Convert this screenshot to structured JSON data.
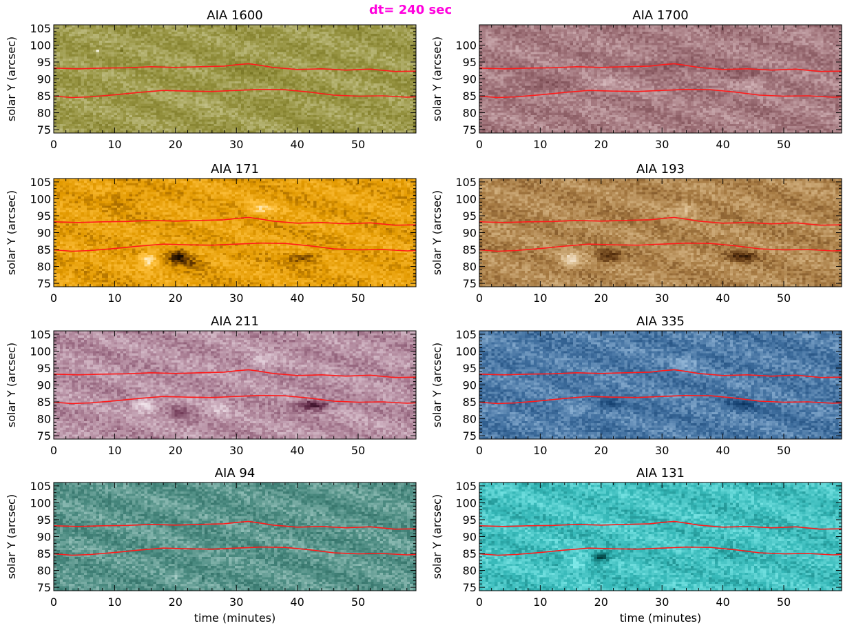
{
  "figure": {
    "annotation": "dt= 240 sec",
    "accent_color": "#ff00dd",
    "boundary_color": "#ff1a1a"
  },
  "chart_data": [
    {
      "type": "heatmap",
      "title": "AIA 1600",
      "xlabel": "",
      "ylabel": "solar Y (arcsec)",
      "xlim": [
        0,
        59.5
      ],
      "ylim": [
        74,
        106
      ],
      "xticks": [
        0,
        10,
        20,
        30,
        40,
        50
      ],
      "yticks": [
        75,
        80,
        85,
        90,
        95,
        100,
        105
      ],
      "colormap": [
        "#2f2d00",
        "#6f6c1c",
        "#94913e",
        "#c4c28a",
        "#f4f3e2"
      ],
      "features": [
        {
          "t": 32,
          "y": 92,
          "sign": -1,
          "amp": 0.25,
          "wt": 5,
          "wy": 3
        },
        {
          "t": 38,
          "y": 83,
          "sign": -1,
          "amp": 0.2,
          "wt": 4,
          "wy": 3
        },
        {
          "t": 26,
          "y": 84,
          "sign": 1,
          "amp": 0.15,
          "wt": 4,
          "wy": 3
        },
        {
          "t": 7.2,
          "y": 98.3,
          "sign": 1,
          "amp": 1.2,
          "wt": 0.3,
          "wy": 0.4
        },
        {
          "t": 11.2,
          "y": 98.6,
          "sign": -1,
          "amp": 1.2,
          "wt": 0.3,
          "wy": 0.4
        }
      ]
    },
    {
      "type": "heatmap",
      "title": "AIA 1700",
      "xlabel": "",
      "ylabel": "solar Y (arcsec)",
      "xlim": [
        0,
        59.5
      ],
      "ylim": [
        74,
        106
      ],
      "xticks": [
        0,
        10,
        20,
        30,
        40,
        50
      ],
      "yticks": [
        75,
        80,
        85,
        90,
        95,
        100
      ],
      "colormap": [
        "#2a0a0e",
        "#6b3b42",
        "#9e7178",
        "#cfb0b4",
        "#f6ecee"
      ],
      "features": [
        {
          "t": 32,
          "y": 94,
          "sign": -1,
          "amp": 0.5,
          "wt": 5,
          "wy": 2
        },
        {
          "t": 42,
          "y": 91,
          "sign": -1,
          "amp": 0.4,
          "wt": 4,
          "wy": 2
        },
        {
          "t": 10,
          "y": 88,
          "sign": -1,
          "amp": 0.35,
          "wt": 6,
          "wy": 2
        },
        {
          "t": 20,
          "y": 88,
          "sign": 1,
          "amp": 0.3,
          "wt": 5,
          "wy": 2
        },
        {
          "t": 45,
          "y": 89,
          "sign": 1,
          "amp": 0.3,
          "wt": 4,
          "wy": 2
        }
      ]
    },
    {
      "type": "heatmap",
      "title": "AIA 171",
      "xlabel": "",
      "ylabel": "solar Y (arcsec)",
      "xlim": [
        0,
        59.5
      ],
      "ylim": [
        74,
        106
      ],
      "xticks": [
        0,
        10,
        20,
        30,
        40,
        50
      ],
      "yticks": [
        75,
        80,
        85,
        90,
        95,
        100,
        105
      ],
      "colormap": [
        "#140800",
        "#6e3e00",
        "#e39a00",
        "#ffc240",
        "#fff7e0"
      ],
      "features": [
        {
          "t": 15.5,
          "y": 82,
          "sign": 1,
          "amp": 1.2,
          "wt": 1.5,
          "wy": 2
        },
        {
          "t": 20.5,
          "y": 83,
          "sign": -1,
          "amp": 1.4,
          "wt": 1.6,
          "wy": 2
        },
        {
          "t": 23,
          "y": 81,
          "sign": -1,
          "amp": 0.6,
          "wt": 2,
          "wy": 2
        },
        {
          "t": 41,
          "y": 82.5,
          "sign": -1,
          "amp": 0.8,
          "wt": 2.5,
          "wy": 1.5
        },
        {
          "t": 34,
          "y": 97,
          "sign": 1,
          "amp": 0.7,
          "wt": 2,
          "wy": 2
        },
        {
          "t": 12,
          "y": 100,
          "sign": -1,
          "amp": 0.4,
          "wt": 3,
          "wy": 2
        }
      ]
    },
    {
      "type": "heatmap",
      "title": "AIA 193",
      "xlabel": "",
      "ylabel": "solar Y (arcsec)",
      "xlim": [
        0,
        59.5
      ],
      "ylim": [
        74,
        106
      ],
      "xticks": [
        0,
        10,
        20,
        30,
        40,
        50
      ],
      "yticks": [
        75,
        80,
        85,
        90,
        95,
        100,
        105
      ],
      "colormap": [
        "#180800",
        "#5c3410",
        "#a87c44",
        "#d8b888",
        "#fff6ea"
      ],
      "features": [
        {
          "t": 15,
          "y": 82,
          "sign": 1,
          "amp": 0.9,
          "wt": 2,
          "wy": 2
        },
        {
          "t": 21,
          "y": 83,
          "sign": -1,
          "amp": 0.9,
          "wt": 2,
          "wy": 2
        },
        {
          "t": 43,
          "y": 83,
          "sign": -1,
          "amp": 1,
          "wt": 2.5,
          "wy": 1.5
        },
        {
          "t": 34,
          "y": 97,
          "sign": 1,
          "amp": 0.5,
          "wt": 2,
          "wy": 2
        }
      ]
    },
    {
      "type": "heatmap",
      "title": "AIA 211",
      "xlabel": "",
      "ylabel": "solar Y (arcsec)",
      "xlim": [
        0,
        59.5
      ],
      "ylim": [
        74,
        106
      ],
      "xticks": [
        0,
        10,
        20,
        30,
        40,
        50
      ],
      "yticks": [
        75,
        80,
        85,
        90,
        95,
        100,
        105
      ],
      "colormap": [
        "#240016",
        "#6c3452",
        "#ae8499",
        "#dcc6d2",
        "#fffafd"
      ],
      "features": [
        {
          "t": 42.5,
          "y": 84,
          "sign": -1,
          "amp": 1.4,
          "wt": 2.5,
          "wy": 1.5
        },
        {
          "t": 15,
          "y": 84,
          "sign": 1,
          "amp": 0.9,
          "wt": 2,
          "wy": 2
        },
        {
          "t": 21,
          "y": 82,
          "sign": -1,
          "amp": 0.5,
          "wt": 2,
          "wy": 2
        },
        {
          "t": 34,
          "y": 97,
          "sign": 1,
          "amp": 0.5,
          "wt": 2,
          "wy": 2
        },
        {
          "t": 27,
          "y": 83,
          "sign": 1,
          "amp": 0.4,
          "wt": 2,
          "wy": 2
        }
      ]
    },
    {
      "type": "heatmap",
      "title": "AIA 335",
      "xlabel": "",
      "ylabel": "solar Y (arcsec)",
      "xlim": [
        0,
        59.5
      ],
      "ylim": [
        74,
        106
      ],
      "xticks": [
        0,
        10,
        20,
        30,
        40,
        50
      ],
      "yticks": [
        75,
        80,
        85,
        90,
        95,
        100,
        105
      ],
      "colormap": [
        "#001024",
        "#0e3a6a",
        "#3f6e9e",
        "#8eb2d4",
        "#e2f0fc"
      ],
      "features": [
        {
          "t": 21,
          "y": 84,
          "sign": -1,
          "amp": 0.5,
          "wt": 2,
          "wy": 2
        },
        {
          "t": 43,
          "y": 84,
          "sign": -1,
          "amp": 0.6,
          "wt": 2.5,
          "wy": 1.5
        },
        {
          "t": 15,
          "y": 82,
          "sign": 1,
          "amp": 0.4,
          "wt": 2,
          "wy": 2
        },
        {
          "t": 34,
          "y": 97,
          "sign": 1,
          "amp": 0.4,
          "wt": 2,
          "wy": 2
        }
      ]
    },
    {
      "type": "heatmap",
      "title": "AIA 94",
      "xlabel": "time (minutes)",
      "ylabel": "solar Y (arcsec)",
      "xlim": [
        0,
        59.5
      ],
      "ylim": [
        74,
        106
      ],
      "xticks": [
        0,
        10,
        20,
        30,
        40,
        50
      ],
      "yticks": [
        75,
        80,
        85,
        90,
        95,
        100,
        105
      ],
      "colormap": [
        "#001c18",
        "#1e5a52",
        "#4a8a80",
        "#9cc6bf",
        "#ecfaf7"
      ],
      "features": [
        {
          "t": 20,
          "y": 78,
          "sign": 1,
          "amp": 0.8,
          "wt": 0.3,
          "wy": 0.5
        },
        {
          "t": 24.5,
          "y": 77.5,
          "sign": -1,
          "amp": 0.8,
          "wt": 0.3,
          "wy": 0.5
        }
      ]
    },
    {
      "type": "heatmap",
      "title": "AIA 131",
      "xlabel": "time (minutes)",
      "ylabel": "solar Y (arcsec)",
      "xlim": [
        0,
        59.5
      ],
      "ylim": [
        74,
        106
      ],
      "xticks": [
        0,
        10,
        20,
        30,
        40,
        50
      ],
      "yticks": [
        75,
        80,
        85,
        90,
        95,
        100,
        105
      ],
      "colormap": [
        "#001a1a",
        "#0a6a6a",
        "#36b8b8",
        "#80eaea",
        "#eaffff"
      ],
      "features": [
        {
          "t": 20,
          "y": 84,
          "sign": -1,
          "amp": 1.4,
          "wt": 1.5,
          "wy": 1.5
        },
        {
          "t": 16,
          "y": 82,
          "sign": 1,
          "amp": 0.6,
          "wt": 1.5,
          "wy": 2
        },
        {
          "t": 40,
          "y": 84,
          "sign": -1,
          "amp": 0.3,
          "wt": 3,
          "wy": 2
        }
      ]
    }
  ],
  "boundaries": {
    "upper": {
      "t": [
        0,
        4,
        8,
        12,
        16,
        20,
        24,
        28,
        30,
        32,
        34,
        36,
        40,
        44,
        48,
        52,
        56,
        59.5
      ],
      "y": [
        93.2,
        93.0,
        93.2,
        93.3,
        93.6,
        93.4,
        93.6,
        93.8,
        94.2,
        94.5,
        94.0,
        93.4,
        92.8,
        93.0,
        92.6,
        92.9,
        92.2,
        92.3
      ]
    },
    "lower": {
      "t": [
        0,
        3,
        6,
        10,
        14,
        18,
        22,
        26,
        30,
        34,
        38,
        42,
        46,
        50,
        54,
        58,
        59.5
      ],
      "y": [
        84.9,
        84.5,
        84.7,
        85.3,
        86.0,
        86.6,
        86.4,
        86.3,
        86.6,
        86.9,
        86.8,
        86.1,
        85.2,
        84.9,
        85.0,
        84.6,
        84.7
      ]
    }
  }
}
